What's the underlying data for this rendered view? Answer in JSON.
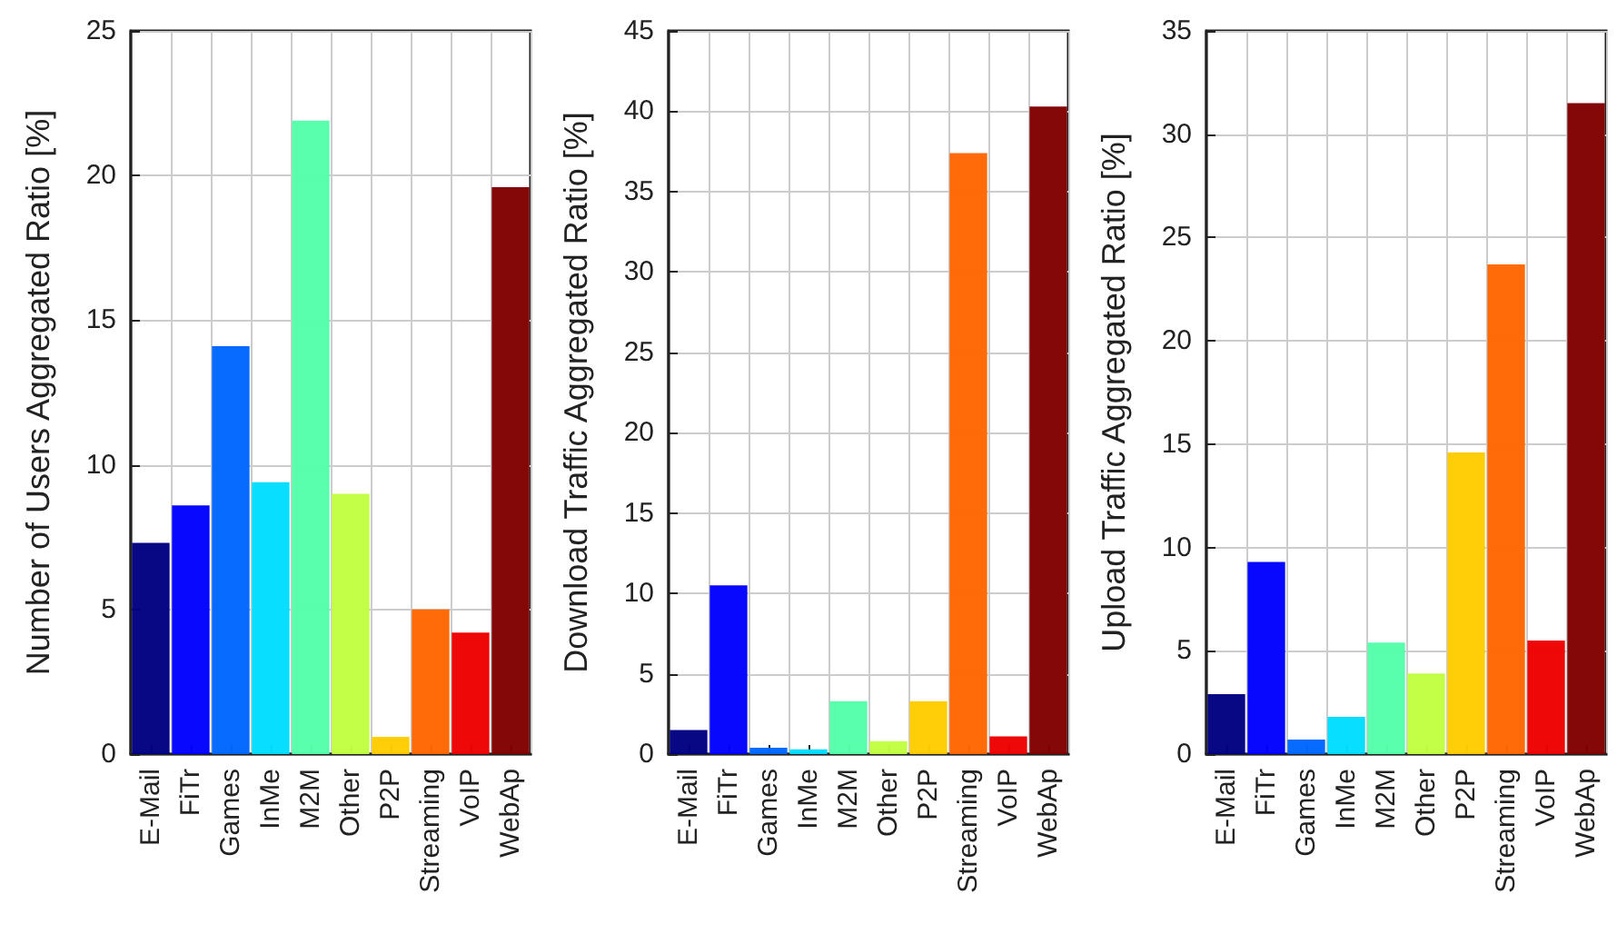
{
  "chart_data": [
    {
      "type": "bar",
      "ylabel": "Number of Users Aggregated Ratio [%]",
      "categories": [
        "E-Mail",
        "FiTr",
        "Games",
        "InMe",
        "M2M",
        "Other",
        "P2P",
        "Streaming",
        "VoIP",
        "WebAp"
      ],
      "values": [
        7.3,
        8.6,
        14.1,
        9.4,
        21.9,
        9.0,
        0.6,
        5.0,
        4.2,
        19.6
      ],
      "colors": [
        "#000080",
        "#0000ff",
        "#0066ff",
        "#00ddff",
        "#55ffaa",
        "#c0ff40",
        "#ffcc00",
        "#ff6600",
        "#ee0000",
        "#800000"
      ],
      "ylim": [
        0,
        25
      ],
      "yticks": [
        0,
        5,
        10,
        15,
        20,
        25
      ],
      "grid": true
    },
    {
      "type": "bar",
      "ylabel": "Download Traffic Aggregated Ratio [%]",
      "categories": [
        "E-Mail",
        "FiTr",
        "Games",
        "InMe",
        "M2M",
        "Other",
        "P2P",
        "Streaming",
        "VoIP",
        "WebAp"
      ],
      "values": [
        1.5,
        10.5,
        0.4,
        0.3,
        3.3,
        0.8,
        3.3,
        37.4,
        1.1,
        40.3
      ],
      "colors": [
        "#000080",
        "#0000ff",
        "#0066ff",
        "#00ddff",
        "#55ffaa",
        "#c0ff40",
        "#ffcc00",
        "#ff6600",
        "#ee0000",
        "#800000"
      ],
      "ylim": [
        0,
        45
      ],
      "yticks": [
        0,
        5,
        10,
        15,
        20,
        25,
        30,
        35,
        40,
        45
      ],
      "grid": true
    },
    {
      "type": "bar",
      "ylabel": "Upload Traffic Aggregated Ratio [%]",
      "categories": [
        "E-Mail",
        "FiTr",
        "Games",
        "InMe",
        "M2M",
        "Other",
        "P2P",
        "Streaming",
        "VoIP",
        "WebAp"
      ],
      "values": [
        2.9,
        9.3,
        0.7,
        1.8,
        5.4,
        3.9,
        14.6,
        23.7,
        5.5,
        31.5
      ],
      "colors": [
        "#000080",
        "#0000ff",
        "#0066ff",
        "#00ddff",
        "#55ffaa",
        "#c0ff40",
        "#ffcc00",
        "#ff6600",
        "#ee0000",
        "#800000"
      ],
      "ylim": [
        0,
        35
      ],
      "yticks": [
        0,
        5,
        10,
        15,
        20,
        25,
        30,
        35
      ],
      "grid": true
    }
  ]
}
